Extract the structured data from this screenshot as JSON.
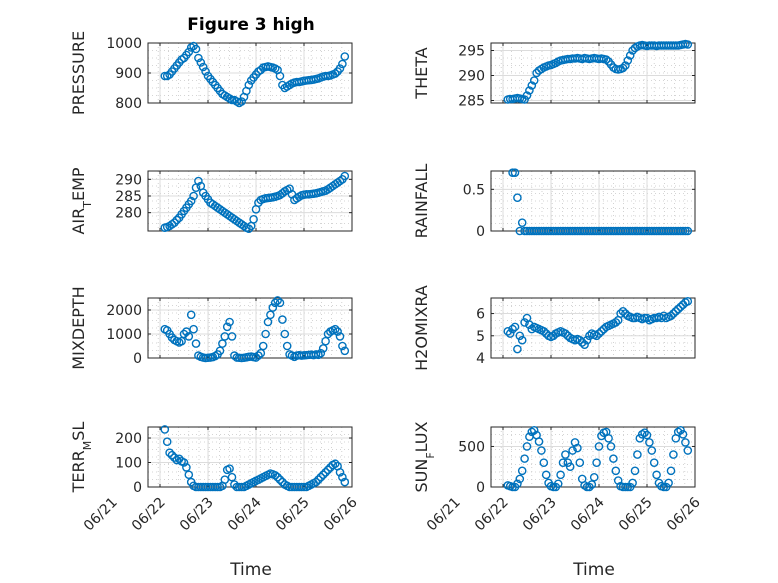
{
  "figure": {
    "title": "Figure 3 high",
    "xlabel": "Time",
    "marker_color": "#0072bd",
    "xticks": [
      {
        "t": 0,
        "label": "06/21"
      },
      {
        "t": 1,
        "label": "06/22"
      },
      {
        "t": 2,
        "label": "06/23"
      },
      {
        "t": 3,
        "label": "06/24"
      },
      {
        "t": 4,
        "label": "06/25"
      },
      {
        "t": 5,
        "label": "06/26"
      }
    ]
  },
  "chart_data": [
    {
      "id": "pressure",
      "type": "scatter",
      "ylabel": "PRESSURE",
      "xlim": [
        0.75,
        5.0
      ],
      "ylim": [
        800,
        1000
      ],
      "yticks": [
        {
          "v": 800,
          "label": "800"
        },
        {
          "v": 900,
          "label": "900"
        },
        {
          "v": 1000,
          "label": "1000"
        }
      ],
      "x": [
        1.1,
        1.15,
        1.2,
        1.25,
        1.3,
        1.35,
        1.4,
        1.45,
        1.5,
        1.55,
        1.6,
        1.65,
        1.7,
        1.75,
        1.8,
        1.85,
        1.9,
        1.95,
        2.0,
        2.05,
        2.1,
        2.15,
        2.2,
        2.25,
        2.3,
        2.35,
        2.4,
        2.45,
        2.5,
        2.55,
        2.6,
        2.65,
        2.7,
        2.75,
        2.8,
        2.85,
        2.9,
        2.95,
        3.0,
        3.05,
        3.1,
        3.15,
        3.2,
        3.25,
        3.3,
        3.35,
        3.4,
        3.45,
        3.5,
        3.55,
        3.6,
        3.65,
        3.7,
        3.75,
        3.8,
        3.85,
        3.9,
        3.95,
        4.0,
        4.05,
        4.1,
        4.15,
        4.2,
        4.25,
        4.3,
        4.35,
        4.4,
        4.45,
        4.5,
        4.55,
        4.6,
        4.65,
        4.7,
        4.75,
        4.8,
        4.85
      ],
      "y": [
        890,
        890,
        895,
        905,
        915,
        925,
        935,
        945,
        950,
        960,
        970,
        985,
        990,
        980,
        950,
        935,
        920,
        905,
        890,
        880,
        870,
        860,
        850,
        840,
        830,
        825,
        820,
        815,
        810,
        810,
        805,
        800,
        805,
        820,
        840,
        860,
        875,
        885,
        895,
        905,
        910,
        918,
        920,
        922,
        920,
        918,
        915,
        910,
        890,
        860,
        850,
        855,
        860,
        865,
        868,
        870,
        870,
        872,
        874,
        875,
        876,
        877,
        878,
        880,
        882,
        885,
        888,
        890,
        890,
        892,
        895,
        898,
        905,
        915,
        930,
        955
      ]
    },
    {
      "id": "theta",
      "type": "scatter",
      "ylabel": "THETA",
      "xlim": [
        0.75,
        5.0
      ],
      "ylim": [
        284.5,
        296.5
      ],
      "yticks": [
        {
          "v": 285,
          "label": "285"
        },
        {
          "v": 290,
          "label": "290"
        },
        {
          "v": 295,
          "label": "295"
        }
      ],
      "x": [
        1.1,
        1.15,
        1.2,
        1.25,
        1.3,
        1.35,
        1.4,
        1.45,
        1.5,
        1.55,
        1.6,
        1.65,
        1.7,
        1.75,
        1.8,
        1.85,
        1.9,
        1.95,
        2.0,
        2.05,
        2.1,
        2.15,
        2.2,
        2.25,
        2.3,
        2.35,
        2.4,
        2.45,
        2.5,
        2.55,
        2.6,
        2.65,
        2.7,
        2.75,
        2.8,
        2.85,
        2.9,
        2.95,
        3.0,
        3.05,
        3.1,
        3.15,
        3.2,
        3.25,
        3.3,
        3.35,
        3.4,
        3.45,
        3.5,
        3.55,
        3.6,
        3.65,
        3.7,
        3.75,
        3.8,
        3.85,
        3.9,
        3.95,
        4.0,
        4.05,
        4.1,
        4.15,
        4.2,
        4.25,
        4.3,
        4.35,
        4.4,
        4.45,
        4.5,
        4.55,
        4.6,
        4.65,
        4.7,
        4.75,
        4.8,
        4.85
      ],
      "y": [
        285.2,
        285.3,
        285.3,
        285.4,
        285.5,
        285.4,
        285.3,
        285.2,
        286,
        287,
        288,
        289,
        290.5,
        291,
        291.3,
        291.6,
        291.8,
        292,
        292.1,
        292.3,
        292.5,
        292.8,
        293,
        293.1,
        293.2,
        293.3,
        293.3,
        293.4,
        293.4,
        293.5,
        293.4,
        293.3,
        293.5,
        293.4,
        293.3,
        293.4,
        293.5,
        293.4,
        293.3,
        293.4,
        293.3,
        293.2,
        292.8,
        292.2,
        291.6,
        291.3,
        291.2,
        291.3,
        291.5,
        292,
        293,
        294,
        295,
        295.5,
        295.8,
        296,
        296.1,
        296,
        295.9,
        296,
        296,
        296,
        295.9,
        296,
        296,
        296,
        296,
        296,
        296,
        296,
        296,
        296,
        296.1,
        296.2,
        296.3,
        296.2
      ]
    },
    {
      "id": "air_temp",
      "type": "scatter",
      "ylabel": "AIR_TEMP",
      "xlim": [
        0.75,
        5.0
      ],
      "ylim": [
        274.5,
        292.5
      ],
      "yticks": [
        {
          "v": 280,
          "label": "280"
        },
        {
          "v": 285,
          "label": "285"
        },
        {
          "v": 290,
          "label": "290"
        }
      ],
      "x": [
        1.1,
        1.15,
        1.2,
        1.25,
        1.3,
        1.35,
        1.4,
        1.45,
        1.5,
        1.55,
        1.6,
        1.65,
        1.7,
        1.75,
        1.8,
        1.85,
        1.9,
        1.95,
        2.0,
        2.05,
        2.1,
        2.15,
        2.2,
        2.25,
        2.3,
        2.35,
        2.4,
        2.45,
        2.5,
        2.55,
        2.6,
        2.65,
        2.7,
        2.75,
        2.8,
        2.85,
        2.9,
        2.95,
        3.0,
        3.05,
        3.1,
        3.15,
        3.2,
        3.25,
        3.3,
        3.35,
        3.4,
        3.45,
        3.5,
        3.55,
        3.6,
        3.65,
        3.7,
        3.75,
        3.8,
        3.85,
        3.9,
        3.95,
        4.0,
        4.05,
        4.1,
        4.15,
        4.2,
        4.25,
        4.3,
        4.35,
        4.4,
        4.45,
        4.5,
        4.55,
        4.6,
        4.65,
        4.7,
        4.75,
        4.8,
        4.85
      ],
      "y": [
        275.5,
        275.7,
        276,
        276.5,
        277,
        277.8,
        278.5,
        279.5,
        280.5,
        281.5,
        282.5,
        283.5,
        285,
        287.5,
        289.5,
        288,
        286,
        285,
        284,
        283,
        282.5,
        282,
        281.5,
        281,
        280.5,
        280,
        279.5,
        279,
        278.5,
        278,
        277.5,
        277,
        276.5,
        276,
        275.5,
        275.2,
        276,
        278,
        281,
        283,
        283.8,
        284.1,
        284.3,
        284.4,
        284.5,
        284.6,
        284.8,
        285,
        285.3,
        285.8,
        286.4,
        286.8,
        287.2,
        285.5,
        283.8,
        284.3,
        284.8,
        285.2,
        285.4,
        285.5,
        285.5,
        285.6,
        285.7,
        285.8,
        286,
        286.2,
        286.4,
        286.6,
        287,
        287.5,
        288,
        288.5,
        289,
        289.5,
        290,
        291
      ]
    },
    {
      "id": "rainfall",
      "type": "scatter",
      "ylabel": "RAINFALL",
      "xlim": [
        0.75,
        5.0
      ],
      "ylim": [
        0,
        0.72
      ],
      "yticks": [
        {
          "v": 0,
          "label": "0"
        },
        {
          "v": 0.5,
          "label": "0.5"
        }
      ],
      "x": [
        1.2,
        1.25,
        1.3,
        1.35,
        1.4,
        1.45,
        1.5,
        1.55,
        1.6,
        1.65,
        1.7,
        1.75,
        1.8,
        1.85,
        1.9,
        1.95,
        2.0,
        2.05,
        2.1,
        2.15,
        2.2,
        2.25,
        2.3,
        2.35,
        2.4,
        2.45,
        2.5,
        2.55,
        2.6,
        2.65,
        2.7,
        2.75,
        2.8,
        2.85,
        2.9,
        2.95,
        3.0,
        3.05,
        3.1,
        3.15,
        3.2,
        3.25,
        3.3,
        3.35,
        3.4,
        3.45,
        3.5,
        3.55,
        3.6,
        3.65,
        3.7,
        3.75,
        3.8,
        3.85,
        3.9,
        3.95,
        4.0,
        4.05,
        4.1,
        4.15,
        4.2,
        4.25,
        4.3,
        4.35,
        4.4,
        4.45,
        4.5,
        4.55,
        4.6,
        4.65,
        4.7,
        4.75,
        4.8,
        4.85
      ],
      "y": [
        0.7,
        0.7,
        0.4,
        0,
        0.1,
        0,
        0,
        0,
        0,
        0,
        0,
        0,
        0,
        0,
        0,
        0,
        0,
        0,
        0,
        0,
        0,
        0,
        0,
        0,
        0,
        0,
        0,
        0,
        0,
        0,
        0,
        0,
        0,
        0,
        0,
        0,
        0,
        0,
        0,
        0,
        0,
        0,
        0,
        0,
        0,
        0,
        0,
        0,
        0,
        0,
        0,
        0,
        0,
        0,
        0,
        0,
        0,
        0,
        0,
        0,
        0,
        0,
        0,
        0,
        0,
        0,
        0,
        0,
        0,
        0,
        0,
        0,
        0,
        0
      ]
    },
    {
      "id": "mixdepth",
      "type": "scatter",
      "ylabel": "MIXDEPTH",
      "xlim": [
        0.75,
        5.0
      ],
      "ylim": [
        0,
        2500
      ],
      "yticks": [
        {
          "v": 0,
          "label": "0"
        },
        {
          "v": 1000,
          "label": "1000"
        },
        {
          "v": 2000,
          "label": "2000"
        }
      ],
      "x": [
        1.1,
        1.15,
        1.2,
        1.25,
        1.3,
        1.35,
        1.4,
        1.45,
        1.5,
        1.55,
        1.6,
        1.65,
        1.7,
        1.75,
        1.8,
        1.85,
        1.9,
        1.95,
        2.0,
        2.05,
        2.1,
        2.15,
        2.2,
        2.25,
        2.3,
        2.35,
        2.4,
        2.45,
        2.5,
        2.55,
        2.6,
        2.65,
        2.7,
        2.75,
        2.8,
        2.85,
        2.9,
        2.95,
        3.0,
        3.05,
        3.1,
        3.15,
        3.2,
        3.25,
        3.3,
        3.35,
        3.4,
        3.45,
        3.5,
        3.55,
        3.6,
        3.65,
        3.7,
        3.75,
        3.8,
        3.85,
        3.9,
        3.95,
        4.0,
        4.05,
        4.1,
        4.15,
        4.2,
        4.25,
        4.3,
        4.35,
        4.4,
        4.45,
        4.5,
        4.55,
        4.6,
        4.65,
        4.7,
        4.75,
        4.8,
        4.85
      ],
      "y": [
        1200,
        1150,
        1000,
        850,
        750,
        700,
        650,
        700,
        1000,
        1100,
        900,
        1800,
        1200,
        600,
        100,
        50,
        20,
        0,
        10,
        20,
        40,
        80,
        150,
        300,
        600,
        900,
        1300,
        1500,
        900,
        100,
        20,
        10,
        0,
        10,
        30,
        50,
        60,
        40,
        20,
        100,
        200,
        500,
        1000,
        1500,
        1800,
        2100,
        2300,
        2400,
        2300,
        1600,
        1000,
        500,
        150,
        100,
        50,
        100,
        120,
        100,
        110,
        120,
        130,
        140,
        120,
        150,
        130,
        200,
        400,
        700,
        1000,
        1100,
        1150,
        1200,
        1100,
        900,
        500,
        300
      ]
    },
    {
      "id": "h2omixra",
      "type": "scatter",
      "ylabel": "H2OMIXRA",
      "xlim": [
        0.75,
        5.0
      ],
      "ylim": [
        4,
        6.7
      ],
      "yticks": [
        {
          "v": 4,
          "label": "4"
        },
        {
          "v": 5,
          "label": "5"
        },
        {
          "v": 6,
          "label": "6"
        }
      ],
      "x": [
        1.1,
        1.15,
        1.2,
        1.25,
        1.3,
        1.35,
        1.4,
        1.45,
        1.5,
        1.55,
        1.6,
        1.65,
        1.7,
        1.75,
        1.8,
        1.85,
        1.9,
        1.95,
        2.0,
        2.05,
        2.1,
        2.15,
        2.2,
        2.25,
        2.3,
        2.35,
        2.4,
        2.45,
        2.5,
        2.55,
        2.6,
        2.65,
        2.7,
        2.75,
        2.8,
        2.85,
        2.9,
        2.95,
        3.0,
        3.05,
        3.1,
        3.15,
        3.2,
        3.25,
        3.3,
        3.35,
        3.4,
        3.45,
        3.5,
        3.55,
        3.6,
        3.65,
        3.7,
        3.75,
        3.8,
        3.85,
        3.9,
        3.95,
        4.0,
        4.05,
        4.1,
        4.15,
        4.2,
        4.25,
        4.3,
        4.35,
        4.4,
        4.45,
        4.5,
        4.55,
        4.6,
        4.65,
        4.7,
        4.75,
        4.8,
        4.85
      ],
      "y": [
        5.2,
        5.1,
        5.3,
        5.4,
        4.4,
        5.0,
        4.8,
        5.6,
        5.8,
        5.5,
        5.3,
        5.4,
        5.35,
        5.3,
        5.25,
        5.2,
        5.1,
        5.0,
        4.95,
        5.0,
        5.1,
        5.15,
        5.2,
        5.15,
        5.1,
        5.0,
        4.9,
        4.85,
        4.8,
        4.85,
        4.8,
        4.7,
        4.6,
        4.8,
        5.0,
        5.1,
        5.05,
        5.0,
        5.1,
        5.2,
        5.3,
        5.4,
        5.45,
        5.5,
        5.55,
        5.6,
        5.7,
        6.0,
        6.1,
        6.0,
        5.9,
        5.85,
        5.8,
        5.8,
        5.85,
        5.8,
        5.75,
        5.8,
        5.8,
        5.7,
        5.75,
        5.8,
        5.8,
        5.85,
        5.8,
        5.9,
        5.8,
        5.85,
        5.9,
        6.0,
        6.1,
        6.2,
        6.3,
        6.4,
        6.5,
        6.55
      ]
    },
    {
      "id": "terr_msl",
      "type": "scatter",
      "ylabel": "TERR_MSL",
      "xlim": [
        0.75,
        5.0
      ],
      "ylim": [
        0,
        245
      ],
      "yticks": [
        {
          "v": 0,
          "label": "0"
        },
        {
          "v": 100,
          "label": "100"
        },
        {
          "v": 200,
          "label": "200"
        }
      ],
      "x": [
        1.1,
        1.15,
        1.2,
        1.25,
        1.3,
        1.35,
        1.4,
        1.45,
        1.5,
        1.55,
        1.6,
        1.65,
        1.7,
        1.75,
        1.8,
        1.85,
        1.9,
        1.95,
        2.0,
        2.05,
        2.1,
        2.15,
        2.2,
        2.25,
        2.3,
        2.35,
        2.4,
        2.45,
        2.5,
        2.55,
        2.6,
        2.65,
        2.7,
        2.75,
        2.8,
        2.85,
        2.9,
        2.95,
        3.0,
        3.05,
        3.1,
        3.15,
        3.2,
        3.25,
        3.3,
        3.35,
        3.4,
        3.45,
        3.5,
        3.55,
        3.6,
        3.65,
        3.7,
        3.75,
        3.8,
        3.85,
        3.9,
        3.95,
        4.0,
        4.05,
        4.1,
        4.15,
        4.2,
        4.25,
        4.3,
        4.35,
        4.4,
        4.45,
        4.5,
        4.55,
        4.6,
        4.65,
        4.7,
        4.75,
        4.8,
        4.85
      ],
      "y": [
        235,
        185,
        140,
        130,
        120,
        110,
        115,
        105,
        100,
        80,
        50,
        20,
        5,
        0,
        0,
        0,
        0,
        0,
        0,
        0,
        0,
        0,
        0,
        0,
        5,
        30,
        70,
        75,
        40,
        10,
        0,
        0,
        0,
        0,
        5,
        10,
        15,
        20,
        25,
        30,
        35,
        40,
        45,
        50,
        55,
        52,
        48,
        40,
        30,
        20,
        10,
        5,
        0,
        0,
        0,
        0,
        0,
        0,
        0,
        0,
        5,
        10,
        15,
        20,
        30,
        40,
        50,
        60,
        70,
        80,
        90,
        95,
        85,
        60,
        40,
        20
      ]
    },
    {
      "id": "sun_flux",
      "type": "scatter",
      "ylabel": "SUN_FLUX",
      "xlim": [
        0.75,
        5.0
      ],
      "ylim": [
        0,
        740
      ],
      "yticks": [
        {
          "v": 0,
          "label": "0"
        },
        {
          "v": 500,
          "label": "500"
        }
      ],
      "x": [
        1.1,
        1.15,
        1.2,
        1.25,
        1.3,
        1.35,
        1.4,
        1.45,
        1.5,
        1.55,
        1.6,
        1.65,
        1.7,
        1.75,
        1.8,
        1.85,
        1.9,
        1.95,
        2.0,
        2.05,
        2.1,
        2.15,
        2.2,
        2.25,
        2.3,
        2.35,
        2.4,
        2.45,
        2.5,
        2.55,
        2.6,
        2.65,
        2.7,
        2.75,
        2.8,
        2.85,
        2.9,
        2.95,
        3.0,
        3.05,
        3.1,
        3.15,
        3.2,
        3.25,
        3.3,
        3.35,
        3.4,
        3.45,
        3.5,
        3.55,
        3.6,
        3.65,
        3.7,
        3.75,
        3.8,
        3.85,
        3.9,
        3.95,
        4.0,
        4.05,
        4.1,
        4.15,
        4.2,
        4.25,
        4.3,
        4.35,
        4.4,
        4.45,
        4.5,
        4.55,
        4.6,
        4.65,
        4.7,
        4.75,
        4.8,
        4.85
      ],
      "y": [
        20,
        10,
        0,
        0,
        40,
        100,
        200,
        350,
        500,
        620,
        680,
        700,
        640,
        560,
        450,
        300,
        150,
        50,
        10,
        0,
        0,
        40,
        150,
        300,
        400,
        300,
        250,
        450,
        550,
        480,
        300,
        100,
        20,
        0,
        0,
        30,
        120,
        300,
        500,
        630,
        670,
        680,
        600,
        500,
        350,
        200,
        80,
        10,
        0,
        0,
        0,
        0,
        50,
        200,
        400,
        600,
        650,
        670,
        640,
        550,
        450,
        300,
        150,
        50,
        10,
        0,
        0,
        50,
        200,
        400,
        600,
        680,
        700,
        650,
        550,
        450
      ]
    }
  ]
}
